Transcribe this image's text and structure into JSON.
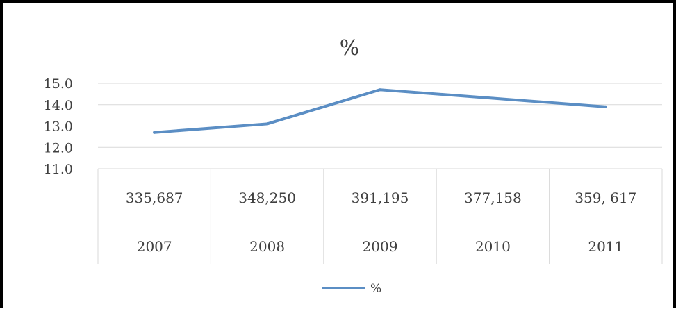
{
  "chart_data": {
    "type": "line",
    "title": "%",
    "categories": [
      "2007",
      "2008",
      "2009",
      "2010",
      "2011"
    ],
    "series": [
      {
        "name": "%",
        "values": [
          12.7,
          13.1,
          14.7,
          14.3,
          13.9
        ]
      }
    ],
    "y_ticks": [
      "15.0",
      "14.0",
      "13.0",
      "12.0",
      "11.0"
    ],
    "ylim": [
      11,
      15
    ],
    "table_row": [
      "335,687",
      "348,250",
      "391,195",
      "377,158",
      "359, 617"
    ],
    "grid": true,
    "legend": "bottom",
    "line_color": "#5b8ec4"
  }
}
